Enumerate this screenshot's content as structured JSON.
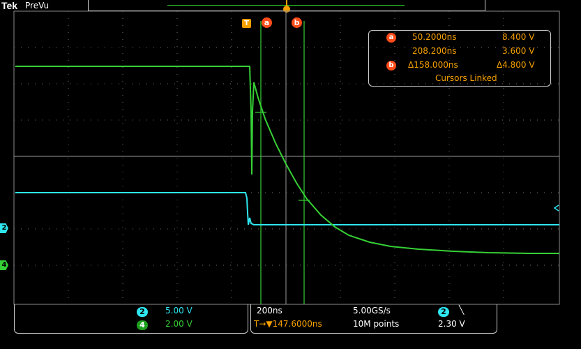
{
  "header": {
    "brand": "Tek",
    "mode": "PreVu"
  },
  "markers": {
    "trigger": "T",
    "cursor_a": "a",
    "cursor_b": "b"
  },
  "readout": {
    "a_time": "50.2000ns",
    "a_volt": "8.400 V",
    "b_time": "208.200ns",
    "b_volt": "3.600 V",
    "delta_time": "Δ158.000ns",
    "delta_volt": "Δ4.800 V",
    "linked": "Cursors Linked"
  },
  "channels": {
    "ch2": {
      "number": "2",
      "scale": "5.00 V",
      "color": "#2ee6f0"
    },
    "ch4": {
      "number": "4",
      "scale": "2.00 V",
      "color": "#35d035"
    }
  },
  "timebase": {
    "horizontal_scale": "200ns",
    "sample_rate": "5.00GS/s",
    "trigger_position": "T→▼147.6000ns",
    "record_length": "10M points"
  },
  "trigger": {
    "source": "2",
    "slope": "╲",
    "level": "2.30 V"
  },
  "colors": {
    "green": "#35d035",
    "cyan": "#2ee6f0",
    "orange": "#f6a000",
    "cursor_red": "#ff4d1a"
  }
}
